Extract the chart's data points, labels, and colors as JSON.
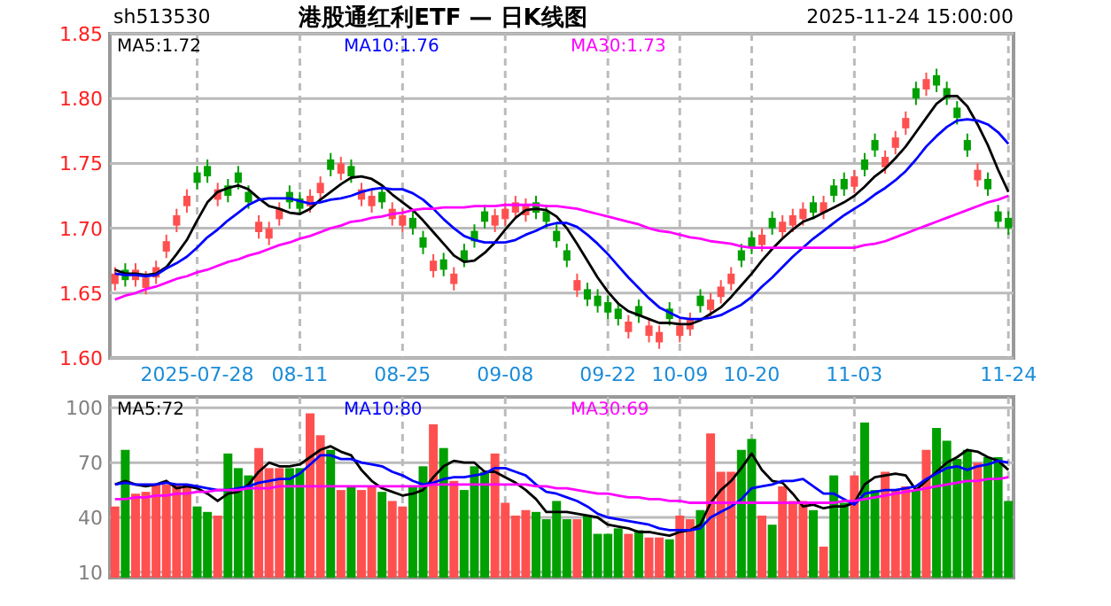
{
  "chart_data": [
    {
      "type": "candlestick",
      "title": "港股通红利ETF — 日K线图",
      "subtitle": "sh513530",
      "annotations": [
        "2025-11-24 15:00:00"
      ],
      "categories": [
        null,
        null,
        null,
        null,
        null,
        null,
        null,
        null,
        "2025-07-28",
        null,
        null,
        null,
        null,
        null,
        null,
        null,
        null,
        null,
        "08-11",
        null,
        null,
        null,
        null,
        null,
        null,
        null,
        null,
        null,
        "08-25",
        null,
        null,
        null,
        null,
        null,
        null,
        null,
        null,
        null,
        "09-08",
        null,
        null,
        null,
        null,
        null,
        null,
        null,
        null,
        null,
        "09-22",
        null,
        null,
        null,
        null,
        null,
        null,
        "10-09",
        null,
        null,
        null,
        null,
        null,
        null,
        "10-20",
        null,
        null,
        null,
        null,
        null,
        null,
        null,
        null,
        null,
        "11-03",
        null,
        null,
        null,
        null,
        null,
        null,
        null,
        null,
        null,
        null,
        null,
        null,
        null,
        null,
        "11-24"
      ],
      "ohlc": [
        [
          1.657,
          1.67,
          1.652,
          1.665
        ],
        [
          1.668,
          1.673,
          1.655,
          1.66
        ],
        [
          1.66,
          1.673,
          1.655,
          1.668
        ],
        [
          1.654,
          1.667,
          1.649,
          1.662
        ],
        [
          1.662,
          1.675,
          1.657,
          1.67
        ],
        [
          1.682,
          1.695,
          1.677,
          1.69
        ],
        [
          1.702,
          1.715,
          1.697,
          1.71
        ],
        [
          1.717,
          1.73,
          1.712,
          1.725
        ],
        [
          1.743,
          1.748,
          1.73,
          1.735
        ],
        [
          1.748,
          1.753,
          1.735,
          1.74
        ],
        [
          1.722,
          1.735,
          1.717,
          1.73
        ],
        [
          1.733,
          1.738,
          1.72,
          1.725
        ],
        [
          1.743,
          1.748,
          1.73,
          1.735
        ],
        [
          1.728,
          1.733,
          1.715,
          1.72
        ],
        [
          1.697,
          1.71,
          1.692,
          1.705
        ],
        [
          1.692,
          1.705,
          1.687,
          1.7
        ],
        [
          1.707,
          1.72,
          1.702,
          1.715
        ],
        [
          1.728,
          1.733,
          1.715,
          1.72
        ],
        [
          1.723,
          1.728,
          1.71,
          1.715
        ],
        [
          1.717,
          1.73,
          1.712,
          1.725
        ],
        [
          1.727,
          1.74,
          1.722,
          1.735
        ],
        [
          1.753,
          1.758,
          1.74,
          1.745
        ],
        [
          1.742,
          1.755,
          1.737,
          1.75
        ],
        [
          1.748,
          1.753,
          1.735,
          1.74
        ],
        [
          1.722,
          1.735,
          1.717,
          1.73
        ],
        [
          1.717,
          1.73,
          1.712,
          1.725
        ],
        [
          1.728,
          1.733,
          1.715,
          1.72
        ],
        [
          1.707,
          1.72,
          1.702,
          1.715
        ],
        [
          1.702,
          1.715,
          1.697,
          1.71
        ],
        [
          1.708,
          1.713,
          1.695,
          1.7
        ],
        [
          1.693,
          1.698,
          1.68,
          1.685
        ],
        [
          1.667,
          1.68,
          1.662,
          1.675
        ],
        [
          1.676,
          1.681,
          1.663,
          1.668
        ],
        [
          1.657,
          1.67,
          1.652,
          1.665
        ],
        [
          1.683,
          1.688,
          1.67,
          1.675
        ],
        [
          1.698,
          1.703,
          1.685,
          1.69
        ],
        [
          1.713,
          1.718,
          1.7,
          1.705
        ],
        [
          1.702,
          1.715,
          1.697,
          1.71
        ],
        [
          1.707,
          1.72,
          1.702,
          1.715
        ],
        [
          1.712,
          1.725,
          1.707,
          1.72
        ],
        [
          1.71,
          1.723,
          1.705,
          1.718
        ],
        [
          1.72,
          1.725,
          1.707,
          1.712
        ],
        [
          1.713,
          1.718,
          1.7,
          1.705
        ],
        [
          1.698,
          1.703,
          1.685,
          1.69
        ],
        [
          1.683,
          1.688,
          1.67,
          1.675
        ],
        [
          1.652,
          1.665,
          1.647,
          1.66
        ],
        [
          1.653,
          1.658,
          1.64,
          1.645
        ],
        [
          1.648,
          1.653,
          1.635,
          1.64
        ],
        [
          1.643,
          1.648,
          1.63,
          1.635
        ],
        [
          1.638,
          1.643,
          1.625,
          1.63
        ],
        [
          1.62,
          1.633,
          1.615,
          1.628
        ],
        [
          1.64,
          1.645,
          1.627,
          1.632
        ],
        [
          1.617,
          1.63,
          1.612,
          1.625
        ],
        [
          1.612,
          1.625,
          1.607,
          1.62
        ],
        [
          1.638,
          1.643,
          1.625,
          1.63
        ],
        [
          1.617,
          1.63,
          1.612,
          1.625
        ],
        [
          1.622,
          1.635,
          1.617,
          1.63
        ],
        [
          1.648,
          1.653,
          1.635,
          1.64
        ],
        [
          1.637,
          1.65,
          1.632,
          1.645
        ],
        [
          1.647,
          1.66,
          1.642,
          1.655
        ],
        [
          1.657,
          1.67,
          1.652,
          1.665
        ],
        [
          1.683,
          1.688,
          1.67,
          1.675
        ],
        [
          1.693,
          1.698,
          1.68,
          1.685
        ],
        [
          1.687,
          1.7,
          1.682,
          1.695
        ],
        [
          1.708,
          1.713,
          1.695,
          1.7
        ],
        [
          1.697,
          1.71,
          1.692,
          1.705
        ],
        [
          1.702,
          1.715,
          1.697,
          1.71
        ],
        [
          1.707,
          1.72,
          1.702,
          1.715
        ],
        [
          1.72,
          1.725,
          1.707,
          1.712
        ],
        [
          1.712,
          1.725,
          1.707,
          1.72
        ],
        [
          1.733,
          1.738,
          1.72,
          1.725
        ],
        [
          1.738,
          1.743,
          1.725,
          1.73
        ],
        [
          1.732,
          1.745,
          1.727,
          1.74
        ],
        [
          1.753,
          1.758,
          1.74,
          1.745
        ],
        [
          1.768,
          1.773,
          1.755,
          1.76
        ],
        [
          1.747,
          1.76,
          1.742,
          1.755
        ],
        [
          1.762,
          1.775,
          1.757,
          1.77
        ],
        [
          1.777,
          1.79,
          1.772,
          1.785
        ],
        [
          1.808,
          1.813,
          1.795,
          1.8
        ],
        [
          1.807,
          1.82,
          1.802,
          1.815
        ],
        [
          1.818,
          1.823,
          1.805,
          1.81
        ],
        [
          1.808,
          1.813,
          1.795,
          1.8
        ],
        [
          1.793,
          1.798,
          1.78,
          1.785
        ],
        [
          1.768,
          1.773,
          1.755,
          1.76
        ],
        [
          1.737,
          1.75,
          1.732,
          1.745
        ],
        [
          1.738,
          1.743,
          1.725,
          1.73
        ],
        [
          1.713,
          1.718,
          1.7,
          1.705
        ],
        [
          1.708,
          1.713,
          1.695,
          1.7
        ]
      ],
      "colors": [
        "#ff5050",
        "#00a000",
        "#ff5050",
        "#ff5050",
        "#ff5050",
        "#ff5050",
        "#ff5050",
        "#ff5050",
        "#00a000",
        "#00a000",
        "#ff5050",
        "#00a000",
        "#00a000",
        "#00a000",
        "#ff5050",
        "#ff5050",
        "#ff5050",
        "#00a000",
        "#00a000",
        "#ff5050",
        "#ff5050",
        "#00a000",
        "#ff5050",
        "#00a000",
        "#ff5050",
        "#ff5050",
        "#00a000",
        "#ff5050",
        "#ff5050",
        "#00a000",
        "#00a000",
        "#ff5050",
        "#00a000",
        "#ff5050",
        "#00a000",
        "#00a000",
        "#00a000",
        "#ff5050",
        "#ff5050",
        "#ff5050",
        "#ff5050",
        "#00a000",
        "#00a000",
        "#00a000",
        "#00a000",
        "#ff5050",
        "#00a000",
        "#00a000",
        "#00a000",
        "#00a000",
        "#ff5050",
        "#00a000",
        "#ff5050",
        "#ff5050",
        "#00a000",
        "#ff5050",
        "#ff5050",
        "#00a000",
        "#ff5050",
        "#ff5050",
        "#ff5050",
        "#00a000",
        "#00a000",
        "#ff5050",
        "#00a000",
        "#ff5050",
        "#ff5050",
        "#ff5050",
        "#00a000",
        "#ff5050",
        "#00a000",
        "#00a000",
        "#ff5050",
        "#00a000",
        "#00a000",
        "#ff5050",
        "#ff5050",
        "#ff5050",
        "#00a000",
        "#ff5050",
        "#00a000",
        "#00a000",
        "#00a000",
        "#00a000",
        "#ff5050",
        "#00a000",
        "#00a000",
        "#00a000"
      ],
      "series": [
        {
          "name": "MA5:1.72",
          "type": "line",
          "color": "#000000",
          "values": [
            1.668,
            1.665,
            1.665,
            1.664,
            1.665,
            1.67,
            1.68,
            1.691,
            1.706,
            1.72,
            1.728,
            1.731,
            1.733,
            1.73,
            1.723,
            1.717,
            1.715,
            1.712,
            1.711,
            1.715,
            1.722,
            1.728,
            1.734,
            1.739,
            1.74,
            1.738,
            1.733,
            1.726,
            1.72,
            1.714,
            1.706,
            1.697,
            1.688,
            1.679,
            1.674,
            1.675,
            1.681,
            1.689,
            1.699,
            1.708,
            1.714,
            1.715,
            1.714,
            1.709,
            1.7,
            1.688,
            1.675,
            1.662,
            1.651,
            1.642,
            1.636,
            1.633,
            1.63,
            1.627,
            1.627,
            1.626,
            1.626,
            1.629,
            1.634,
            1.639,
            1.647,
            1.656,
            1.665,
            1.675,
            1.684,
            1.692,
            1.699,
            1.705,
            1.708,
            1.712,
            1.716,
            1.72,
            1.725,
            1.732,
            1.74,
            1.746,
            1.754,
            1.763,
            1.774,
            1.785,
            1.796,
            1.802,
            1.802,
            1.794,
            1.78,
            1.764,
            1.745,
            1.728
          ]
        },
        {
          "name": "MA10:1.76",
          "type": "line",
          "color": "#0000ff",
          "values": [
            1.665,
            1.664,
            1.664,
            1.663,
            1.664,
            1.669,
            1.673,
            1.678,
            1.685,
            1.693,
            1.699,
            1.706,
            1.712,
            1.718,
            1.722,
            1.723,
            1.723,
            1.723,
            1.721,
            1.719,
            1.72,
            1.722,
            1.723,
            1.725,
            1.728,
            1.73,
            1.731,
            1.73,
            1.73,
            1.727,
            1.722,
            1.715,
            1.707,
            1.7,
            1.694,
            1.691,
            1.689,
            1.689,
            1.689,
            1.691,
            1.695,
            1.698,
            1.702,
            1.704,
            1.704,
            1.701,
            1.695,
            1.688,
            1.68,
            1.671,
            1.662,
            1.654,
            1.646,
            1.639,
            1.635,
            1.631,
            1.63,
            1.63,
            1.631,
            1.633,
            1.637,
            1.641,
            1.647,
            1.655,
            1.662,
            1.67,
            1.678,
            1.685,
            1.692,
            1.698,
            1.704,
            1.71,
            1.715,
            1.72,
            1.726,
            1.731,
            1.737,
            1.744,
            1.753,
            1.763,
            1.771,
            1.778,
            1.783,
            1.784,
            1.783,
            1.78,
            1.774,
            1.765
          ]
        },
        {
          "name": "MA30:1.73",
          "type": "line",
          "color": "#ff00ff",
          "values": [
            1.645,
            1.648,
            1.65,
            1.653,
            1.655,
            1.658,
            1.661,
            1.663,
            1.666,
            1.668,
            1.671,
            1.674,
            1.676,
            1.679,
            1.681,
            1.684,
            1.687,
            1.689,
            1.692,
            1.694,
            1.697,
            1.7,
            1.702,
            1.705,
            1.706,
            1.708,
            1.709,
            1.711,
            1.712,
            1.714,
            1.715,
            1.715,
            1.716,
            1.716,
            1.716,
            1.717,
            1.717,
            1.717,
            1.718,
            1.718,
            1.718,
            1.718,
            1.717,
            1.717,
            1.716,
            1.715,
            1.713,
            1.711,
            1.709,
            1.707,
            1.705,
            1.703,
            1.7,
            1.698,
            1.697,
            1.695,
            1.693,
            1.692,
            1.69,
            1.689,
            1.688,
            1.686,
            1.685,
            1.685,
            1.685,
            1.685,
            1.685,
            1.685,
            1.685,
            1.685,
            1.685,
            1.685,
            1.685,
            1.687,
            1.688,
            1.69,
            1.693,
            1.696,
            1.699,
            1.702,
            1.705,
            1.708,
            1.711,
            1.714,
            1.717,
            1.72,
            1.722,
            1.725
          ]
        }
      ],
      "ylim": [
        1.6,
        1.85
      ],
      "yticks": [
        {
          "value": 1.6,
          "label": "1.60"
        },
        {
          "value": 1.65,
          "label": "1.65"
        },
        {
          "value": 1.7,
          "label": "1.70"
        },
        {
          "value": 1.75,
          "label": "1.75"
        },
        {
          "value": 1.8,
          "label": "1.80"
        },
        {
          "value": 1.85,
          "label": "1.85"
        }
      ],
      "grid": true,
      "legend": "top left"
    },
    {
      "type": "bar",
      "tick_labels": "y",
      "categories": [
        null,
        null,
        null,
        null,
        null,
        null,
        null,
        null,
        null,
        null,
        null,
        null,
        null,
        null,
        null,
        null,
        null,
        null,
        null,
        null,
        null,
        null,
        null,
        null,
        null,
        null,
        null,
        null,
        null,
        null,
        null,
        null,
        null,
        null,
        null,
        null,
        null,
        null,
        null,
        null,
        null,
        null,
        null,
        null,
        null,
        null,
        null,
        null,
        null,
        null,
        null,
        null,
        null,
        null,
        null,
        null,
        null,
        null,
        null,
        null,
        null,
        null,
        null,
        null,
        null,
        null,
        null,
        null,
        null,
        null,
        null,
        null,
        null,
        null,
        null,
        null,
        null,
        null,
        null,
        null,
        null,
        null,
        null,
        null,
        null,
        null,
        null,
        null
      ],
      "series": [
        {
          "type": "bar",
          "values": [
            46,
            77,
            53,
            54,
            58,
            58,
            58,
            58,
            46,
            43,
            41,
            75,
            67,
            63,
            78,
            67,
            67,
            67,
            67,
            97,
            85,
            77,
            55,
            57,
            55,
            57,
            54,
            49,
            46,
            57,
            68,
            91,
            78,
            60,
            55,
            68,
            65,
            75,
            48,
            41,
            44,
            43,
            39,
            49,
            39,
            39,
            41,
            31,
            31,
            34,
            31,
            33,
            29,
            29,
            28,
            41,
            39,
            44,
            86,
            65,
            65,
            77,
            83,
            41,
            36,
            57,
            49,
            49,
            44,
            24,
            63,
            48,
            63,
            92,
            55,
            65,
            55,
            57,
            55,
            77,
            89,
            82,
            72,
            77,
            70,
            73,
            73,
            49
          ],
          "colors": [
            "#ff5050",
            "#00a000",
            "#ff5050",
            "#ff5050",
            "#ff5050",
            "#ff5050",
            "#ff5050",
            "#ff5050",
            "#00a000",
            "#00a000",
            "#ff5050",
            "#00a000",
            "#00a000",
            "#00a000",
            "#ff5050",
            "#ff5050",
            "#ff5050",
            "#00a000",
            "#00a000",
            "#ff5050",
            "#ff5050",
            "#00a000",
            "#ff5050",
            "#00a000",
            "#ff5050",
            "#ff5050",
            "#00a000",
            "#ff5050",
            "#ff5050",
            "#00a000",
            "#00a000",
            "#ff5050",
            "#00a000",
            "#ff5050",
            "#00a000",
            "#00a000",
            "#00a000",
            "#ff5050",
            "#ff5050",
            "#ff5050",
            "#ff5050",
            "#00a000",
            "#00a000",
            "#00a000",
            "#00a000",
            "#ff5050",
            "#00a000",
            "#00a000",
            "#00a000",
            "#00a000",
            "#ff5050",
            "#00a000",
            "#ff5050",
            "#ff5050",
            "#00a000",
            "#ff5050",
            "#ff5050",
            "#00a000",
            "#ff5050",
            "#ff5050",
            "#ff5050",
            "#00a000",
            "#00a000",
            "#ff5050",
            "#00a000",
            "#ff5050",
            "#ff5050",
            "#ff5050",
            "#00a000",
            "#ff5050",
            "#00a000",
            "#00a000",
            "#ff5050",
            "#00a000",
            "#00a000",
            "#ff5050",
            "#ff5050",
            "#ff5050",
            "#00a000",
            "#ff5050",
            "#00a000",
            "#00a000",
            "#00a000",
            "#00a000",
            "#ff5050",
            "#00a000",
            "#00a000",
            "#00a000"
          ]
        },
        {
          "name": "MA5:72",
          "type": "line",
          "color": "#000000",
          "values": [
            58,
            60,
            58,
            57,
            58,
            60,
            56,
            57,
            56,
            53,
            49,
            53,
            54,
            58,
            65,
            70,
            68,
            68,
            69,
            73,
            77,
            79,
            76,
            74,
            66,
            60,
            56,
            54,
            52,
            53,
            55,
            62,
            68,
            71,
            70,
            70,
            65,
            65,
            62,
            59,
            55,
            50,
            43,
            43,
            43,
            42,
            41,
            40,
            36,
            35,
            34,
            32,
            32,
            31,
            30,
            32,
            33,
            36,
            48,
            55,
            60,
            67,
            75,
            66,
            60,
            59,
            53,
            46,
            47,
            45,
            46,
            46,
            48,
            58,
            62,
            63,
            64,
            63,
            55,
            60,
            65,
            70,
            73,
            77,
            76,
            73,
            71,
            66
          ]
        },
        {
          "name": "MA10:80",
          "type": "line",
          "color": "#0000ff",
          "values": [
            58,
            59,
            58,
            58,
            58,
            59,
            58,
            58,
            57,
            56,
            55,
            55,
            56,
            57,
            59,
            60,
            61,
            61,
            64,
            69,
            74,
            74,
            72,
            72,
            70,
            69,
            68,
            65,
            63,
            60,
            58,
            59,
            61,
            62,
            62,
            63,
            64,
            67,
            67,
            65,
            63,
            58,
            54,
            53,
            51,
            49,
            46,
            42,
            40,
            39,
            38,
            37,
            36,
            34,
            33,
            33,
            33,
            34,
            40,
            43,
            46,
            50,
            56,
            57,
            58,
            60,
            60,
            61,
            57,
            53,
            53,
            50,
            47,
            53,
            54,
            55,
            55,
            56,
            57,
            61,
            64,
            67,
            68,
            66,
            68,
            69,
            71,
            70
          ]
        },
        {
          "name": "MA30:69",
          "type": "line",
          "color": "#ff00ff",
          "values": [
            50,
            50,
            51,
            51,
            52,
            52,
            53,
            53,
            54,
            54,
            55,
            55,
            55,
            56,
            56,
            56,
            57,
            57,
            57,
            57,
            57,
            57,
            57,
            57,
            57,
            57,
            57,
            57,
            57,
            57,
            57,
            58,
            58,
            58,
            58,
            58,
            58,
            58,
            58,
            58,
            58,
            57,
            57,
            56,
            56,
            55,
            54,
            53,
            53,
            52,
            51,
            51,
            50,
            50,
            49,
            49,
            48,
            48,
            48,
            48,
            48,
            48,
            48,
            48,
            48,
            48,
            48,
            48,
            48,
            48,
            48,
            49,
            49,
            50,
            51,
            52,
            53,
            54,
            55,
            56,
            57,
            58,
            59,
            60,
            60,
            61,
            61,
            62
          ]
        }
      ],
      "ylim": [
        7,
        106
      ],
      "yticks": [
        10,
        40,
        70,
        100
      ],
      "grid": true,
      "legend": "top left"
    }
  ]
}
